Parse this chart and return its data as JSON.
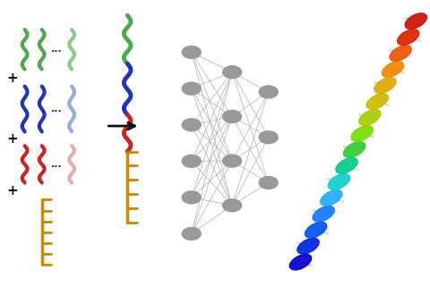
{
  "bg_color": "#ffffff",
  "sc_green": "#4da84d",
  "sc_green_light": "#88cc88",
  "sc_blue_dark": "#2233bb",
  "sc_blue_light": "#99aade",
  "sc_red_dark": "#cc2222",
  "sc_red_light": "#e8aaaa",
  "sc_orange": "#cc8800",
  "nn_node_color": "#999999",
  "nn_edge_color": "#bbbbbb",
  "arrow_color": "#111111",
  "plus_color": "#111111",
  "dots_color": "#333333",
  "helix_colors": [
    "#0000cc",
    "#0022dd",
    "#0055ee",
    "#1177ff",
    "#22aaff",
    "#11cccc",
    "#00cc88",
    "#33cc33",
    "#77dd00",
    "#aacc00",
    "#ccbb00",
    "#ddaa00",
    "#ee8800",
    "#ee5500",
    "#dd2200",
    "#cc1100"
  ]
}
